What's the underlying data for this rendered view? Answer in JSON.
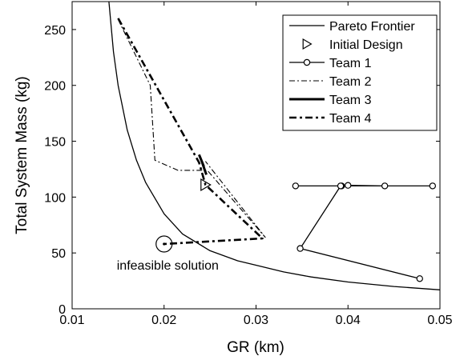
{
  "chart_data": {
    "type": "line",
    "xlabel": "GR (km)",
    "ylabel": "Total System Mass (kg)",
    "xlim": [
      0.01,
      0.05
    ],
    "ylim": [
      0,
      275
    ],
    "xticks": [
      0.01,
      0.02,
      0.03,
      0.04,
      0.05
    ],
    "yticks": [
      0,
      50,
      100,
      150,
      200,
      250
    ],
    "xtick_labels": [
      "0.01",
      "0.02",
      "0.03",
      "0.04",
      "0.05"
    ],
    "ytick_labels": [
      "0",
      "50",
      "100",
      "150",
      "200",
      "250"
    ],
    "grid": false,
    "legend_position": "top-right",
    "series": [
      {
        "name": "Pareto Frontier",
        "style": "solid-thin",
        "x": [
          0.014,
          0.0145,
          0.015,
          0.016,
          0.017,
          0.018,
          0.02,
          0.022,
          0.025,
          0.028,
          0.03,
          0.033,
          0.036,
          0.04,
          0.045,
          0.05
        ],
        "y": [
          275,
          230,
          200,
          160,
          133,
          113,
          85,
          67,
          52,
          43,
          39,
          33,
          28.5,
          24,
          20,
          17
        ]
      },
      {
        "name": "Initial Design",
        "style": "triangle-marker",
        "x": [
          0.0245
        ],
        "y": [
          111
        ]
      },
      {
        "name": "Team 1",
        "style": "circle-marker-line",
        "x": [
          0.0343,
          0.0393,
          0.04,
          0.044,
          0.0492,
          0.0392,
          0.0348,
          0.0478
        ],
        "y": [
          110,
          110,
          110.5,
          110,
          110,
          110,
          54,
          27
        ]
      },
      {
        "name": "Team 2",
        "style": "dash-dot",
        "x": [
          0.015,
          0.0185,
          0.019,
          0.0215,
          0.0247,
          0.031,
          0.0245
        ],
        "y": [
          259,
          200,
          133,
          124,
          124,
          64,
          132
        ]
      },
      {
        "name": "Team 3",
        "style": "solid-thick",
        "x": [
          0.0238,
          0.0243,
          0.0241,
          0.0246
        ],
        "y": [
          138,
          128,
          132,
          120
        ]
      },
      {
        "name": "Team 4",
        "style": "dash-dot-thick",
        "x": [
          0.015,
          0.0238,
          0.0245,
          0.0307,
          0.02
        ],
        "y": [
          260,
          131,
          111,
          63,
          58
        ]
      }
    ],
    "annotations": [
      {
        "text": "infeasible solution",
        "x": 0.02,
        "y": 58
      }
    ]
  }
}
